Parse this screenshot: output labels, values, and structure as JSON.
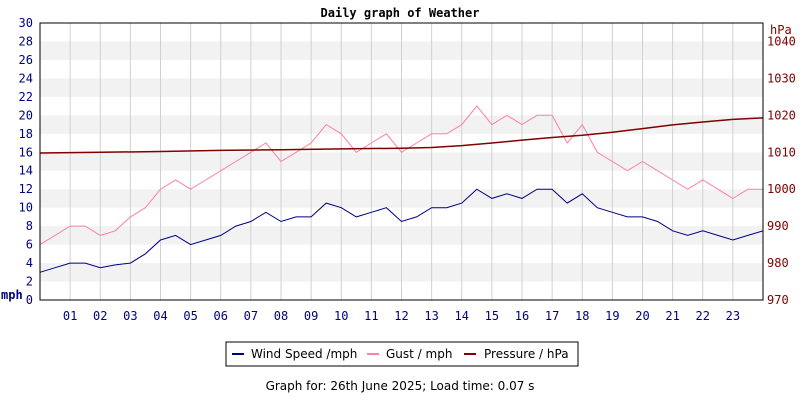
{
  "chart_data": {
    "type": "line",
    "title": "Daily graph of Weather",
    "left_axis": {
      "unit": "mph",
      "ylim": [
        0,
        30
      ],
      "ticks": [
        0,
        2,
        4,
        6,
        8,
        10,
        12,
        14,
        16,
        18,
        20,
        22,
        24,
        26,
        28,
        30
      ]
    },
    "right_axis": {
      "unit": "hPa",
      "ylim": [
        970,
        1045
      ],
      "ticks": [
        970,
        980,
        990,
        1000,
        1010,
        1020,
        1030,
        1040
      ]
    },
    "x_ticks": [
      "01",
      "02",
      "03",
      "04",
      "05",
      "06",
      "07",
      "08",
      "09",
      "10",
      "11",
      "12",
      "13",
      "14",
      "15",
      "16",
      "17",
      "18",
      "19",
      "20",
      "21",
      "22",
      "23"
    ],
    "x_range_hours": [
      0,
      24
    ],
    "grid": "horizontal bands",
    "legend_position": "bottom-center",
    "series": [
      {
        "name": "Wind Speed /mph",
        "axis": "left",
        "color": "#000080",
        "x": [
          0,
          0.5,
          1,
          1.5,
          2,
          2.5,
          3,
          3.5,
          4,
          4.5,
          5,
          5.5,
          6,
          6.5,
          7,
          7.5,
          8,
          8.5,
          9,
          9.5,
          10,
          10.5,
          11,
          11.5,
          12,
          12.5,
          13,
          13.5,
          14,
          14.5,
          15,
          15.5,
          16,
          16.5,
          17,
          17.5,
          18,
          18.5,
          19,
          19.5,
          20,
          20.5,
          21,
          21.5,
          22,
          22.5,
          23,
          23.5,
          24
        ],
        "values": [
          3.0,
          3.5,
          4.0,
          4.0,
          3.5,
          3.8,
          4.0,
          5.0,
          6.5,
          7.0,
          6.0,
          6.5,
          7.0,
          8.0,
          8.5,
          9.5,
          8.5,
          9.0,
          9.0,
          10.5,
          10.0,
          9.0,
          9.5,
          10.0,
          8.5,
          9.0,
          10.0,
          10.0,
          10.5,
          12.0,
          11.0,
          11.5,
          11.0,
          12.0,
          12.0,
          10.5,
          11.5,
          10.0,
          9.5,
          9.0,
          9.0,
          8.5,
          7.5,
          7.0,
          7.5,
          7.0,
          6.5,
          7.0,
          7.5
        ]
      },
      {
        "name": "Gust / mph",
        "axis": "left",
        "color": "#ff7fa6",
        "x": [
          0,
          0.5,
          1,
          1.5,
          2,
          2.5,
          3,
          3.5,
          4,
          4.5,
          5,
          5.5,
          6,
          6.5,
          7,
          7.5,
          8,
          8.5,
          9,
          9.5,
          10,
          10.5,
          11,
          11.5,
          12,
          12.5,
          13,
          13.5,
          14,
          14.5,
          15,
          15.5,
          16,
          16.5,
          17,
          17.5,
          18,
          18.5,
          19,
          19.5,
          20,
          20.5,
          21,
          21.5,
          22,
          22.5,
          23,
          23.5,
          24
        ],
        "values": [
          6,
          7,
          8,
          8,
          7,
          7.5,
          9,
          10,
          12,
          13,
          12,
          13,
          14,
          15,
          16,
          17,
          15,
          16,
          17,
          19,
          18,
          16,
          17,
          18,
          16,
          17,
          18,
          18,
          19,
          21,
          19,
          20,
          19,
          20,
          20,
          17,
          19,
          16,
          15,
          14,
          15,
          14,
          13,
          12,
          13,
          12,
          11,
          12,
          12
        ]
      },
      {
        "name": "Pressure / hPa",
        "axis": "right",
        "color": "#800000",
        "x": [
          0,
          2,
          4,
          6,
          8,
          10,
          12,
          13,
          14,
          15,
          16,
          17,
          18,
          19,
          20,
          21,
          22,
          23,
          24
        ],
        "values": [
          1009.8,
          1010.0,
          1010.2,
          1010.5,
          1010.7,
          1010.9,
          1011.1,
          1011.3,
          1011.8,
          1012.5,
          1013.3,
          1014.0,
          1014.6,
          1015.4,
          1016.4,
          1017.4,
          1018.2,
          1018.9,
          1019.3
        ]
      }
    ]
  },
  "legend": [
    {
      "label": "Wind Speed /mph",
      "color": "#000080"
    },
    {
      "label": "Gust / mph",
      "color": "#ff7fa6"
    },
    {
      "label": "Pressure / hPa",
      "color": "#800000"
    }
  ],
  "footer_text": "Graph for: 26th June 2025; Load time: 0.07 s",
  "colors": {
    "left_axis_text": "#000080",
    "right_axis_text": "#800000",
    "band_light": "#f2f2f2"
  }
}
